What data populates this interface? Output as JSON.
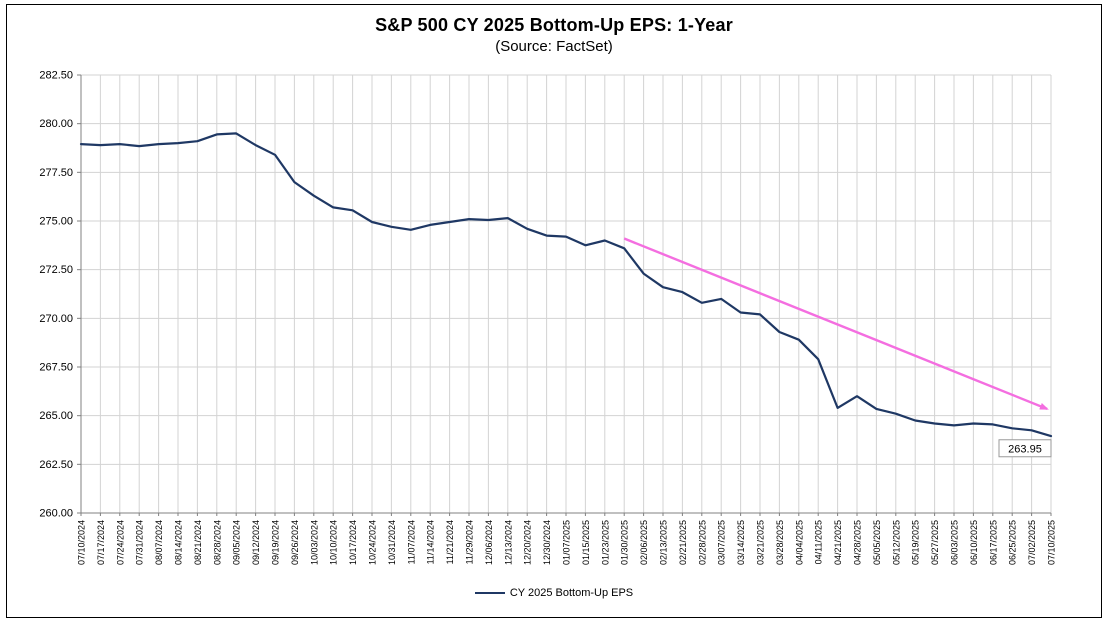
{
  "chart_data": {
    "type": "line",
    "title": "S&P 500 CY 2025 Bottom-Up EPS: 1-Year",
    "subtitle": "(Source: FactSet)",
    "xlabel": "",
    "ylabel": "",
    "ylim": [
      260.0,
      282.5
    ],
    "y_ticks": [
      282.5,
      280.0,
      277.5,
      275.0,
      272.5,
      270.0,
      267.5,
      265.0,
      262.5,
      260.0
    ],
    "grid": true,
    "legend_position": "bottom",
    "categories": [
      "07/10/2024",
      "07/17/2024",
      "07/24/2024",
      "07/31/2024",
      "08/07/2024",
      "08/14/2024",
      "08/21/2024",
      "08/28/2024",
      "09/05/2024",
      "09/12/2024",
      "09/19/2024",
      "09/26/2024",
      "10/03/2024",
      "10/10/2024",
      "10/17/2024",
      "10/24/2024",
      "10/31/2024",
      "11/07/2024",
      "11/14/2024",
      "11/21/2024",
      "11/29/2024",
      "12/06/2024",
      "12/13/2024",
      "12/20/2024",
      "12/30/2024",
      "01/07/2025",
      "01/15/2025",
      "01/23/2025",
      "01/30/2025",
      "02/06/2025",
      "02/13/2025",
      "02/21/2025",
      "02/28/2025",
      "03/07/2025",
      "03/14/2025",
      "03/21/2025",
      "03/28/2025",
      "04/04/2025",
      "04/11/2025",
      "04/21/2025",
      "04/28/2025",
      "05/05/2025",
      "05/12/2025",
      "05/19/2025",
      "05/27/2025",
      "06/03/2025",
      "06/10/2025",
      "06/17/2025",
      "06/25/2025",
      "07/02/2025",
      "07/10/2025"
    ],
    "series": [
      {
        "name": "CY 2025 Bottom-Up EPS",
        "color": "#1f3864",
        "values": [
          278.95,
          278.9,
          278.95,
          278.85,
          278.95,
          279.0,
          279.1,
          279.45,
          279.5,
          278.9,
          278.4,
          277.0,
          276.3,
          275.7,
          275.55,
          274.95,
          274.7,
          274.55,
          274.8,
          274.95,
          275.1,
          275.05,
          275.15,
          274.6,
          274.25,
          274.2,
          273.75,
          274.0,
          273.6,
          272.3,
          271.6,
          271.35,
          270.8,
          271.0,
          270.3,
          270.2,
          269.3,
          268.9,
          267.9,
          265.4,
          266.0,
          265.35,
          265.1,
          264.75,
          264.6,
          264.5,
          264.6,
          264.55,
          264.35,
          264.25,
          263.95
        ]
      }
    ],
    "trend_arrow": {
      "color": "#f46ee0",
      "from": {
        "category": "01/30/2025",
        "value": 274.1
      },
      "to": {
        "category": "07/10/2025",
        "value": 265.35
      }
    },
    "annotations": [
      {
        "type": "label",
        "text": "263.95",
        "category": "07/10/2025",
        "value": 263.3
      }
    ],
    "colors": {
      "gridline": "#d3d3d3",
      "axis": "#808080",
      "text": "#000000"
    }
  }
}
